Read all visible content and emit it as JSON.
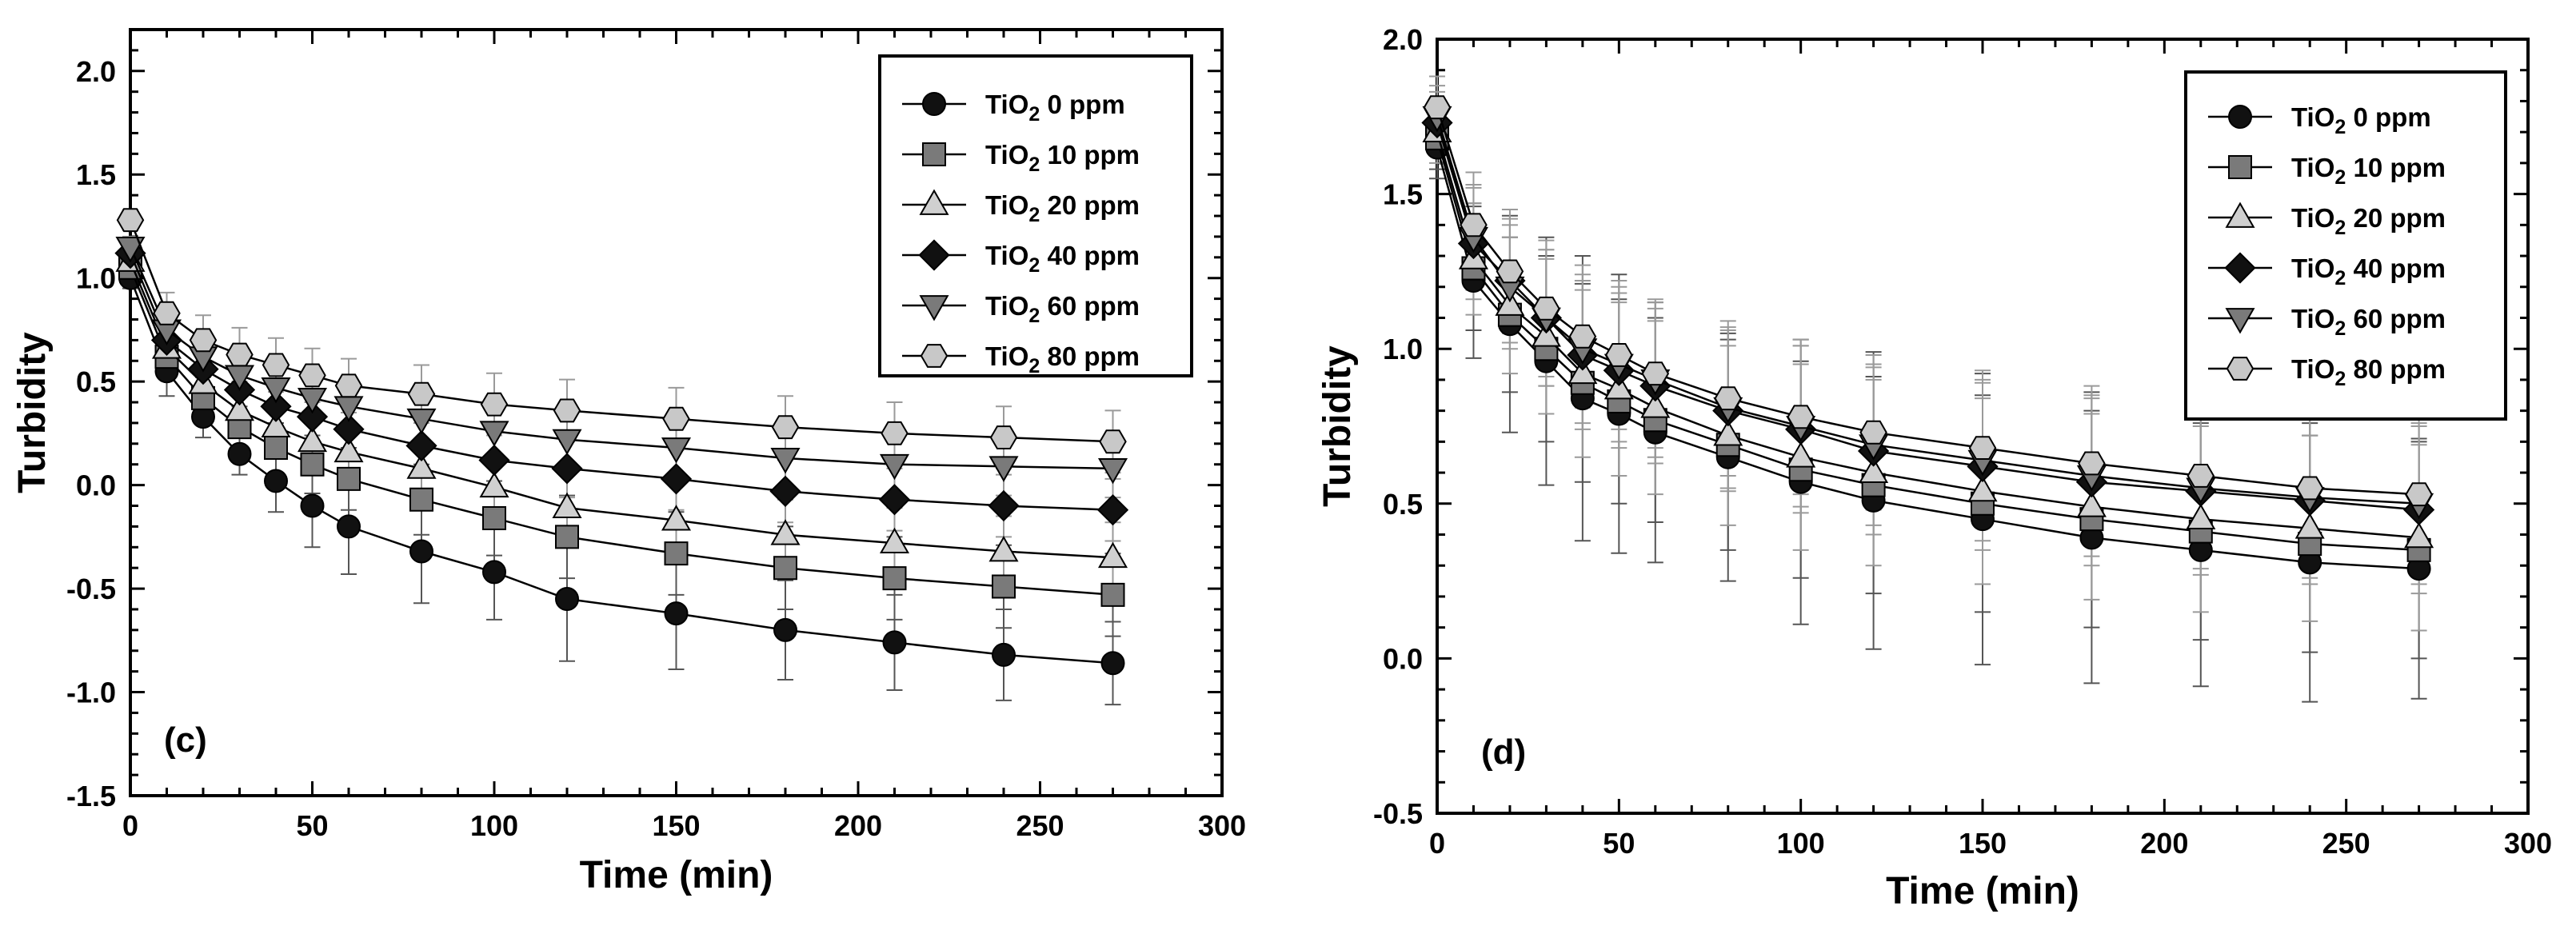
{
  "figure": {
    "styles": [
      {
        "marker": "circle",
        "fill": "#111111"
      },
      {
        "marker": "square",
        "fill": "#7a7a7a"
      },
      {
        "marker": "triangle-up",
        "fill": "#d0d0d0"
      },
      {
        "marker": "diamond",
        "fill": "#111111"
      },
      {
        "marker": "triangle-down",
        "fill": "#7a7a7a"
      },
      {
        "marker": "hexagon",
        "fill": "#c8c8c8"
      }
    ],
    "colors": {
      "line": "#000000",
      "errorbar": "#555555",
      "errorbar_light": "#9a9a9a"
    }
  },
  "chart_data": [
    {
      "type": "line",
      "panel_label": "(c)",
      "title": "",
      "xlabel": "Time (min)",
      "ylabel": "Turbidity",
      "xlim": [
        0,
        300
      ],
      "ylim": [
        -1.5,
        2.2
      ],
      "xticks": [
        0,
        50,
        100,
        150,
        200,
        250,
        300
      ],
      "yticks": [
        -1.5,
        -1.0,
        -0.5,
        0.0,
        0.5,
        1.0,
        1.5,
        2.0
      ],
      "ytick_labels": [
        "-1.5",
        "-1.0",
        "-0.5",
        "0.0",
        "0.5",
        "1.0",
        "1.5",
        "2.0"
      ],
      "grid": false,
      "legend_position": "top-right",
      "x": [
        0,
        10,
        20,
        30,
        40,
        50,
        60,
        80,
        100,
        120,
        150,
        180,
        210,
        240,
        270
      ],
      "series": [
        {
          "name": "TiO2 0 ppm",
          "legend_main": "TiO",
          "legend_sub": "2",
          "legend_rest": " 0 ppm",
          "values": [
            1.0,
            0.55,
            0.33,
            0.15,
            0.02,
            -0.1,
            -0.2,
            -0.32,
            -0.42,
            -0.55,
            -0.62,
            -0.7,
            -0.76,
            -0.82,
            -0.86
          ],
          "errors": [
            0.05,
            0.12,
            0.1,
            0.1,
            0.15,
            0.2,
            0.23,
            0.25,
            0.23,
            0.3,
            0.27,
            0.24,
            0.23,
            0.22,
            0.2
          ]
        },
        {
          "name": "TiO2 10 ppm",
          "legend_main": "TiO",
          "legend_sub": "2",
          "legend_rest": " 10 ppm",
          "values": [
            1.05,
            0.62,
            0.42,
            0.28,
            0.18,
            0.1,
            0.03,
            -0.07,
            -0.16,
            -0.25,
            -0.33,
            -0.4,
            -0.45,
            -0.49,
            -0.53
          ],
          "errors": [
            0.05,
            0.1,
            0.1,
            0.1,
            0.12,
            0.14,
            0.15,
            0.17,
            0.18,
            0.2,
            0.2,
            0.2,
            0.2,
            0.2,
            0.2
          ]
        },
        {
          "name": "TiO2 20 ppm",
          "legend_main": "TiO",
          "legend_sub": "2",
          "legend_rest": " 20 ppm",
          "values": [
            1.08,
            0.66,
            0.49,
            0.36,
            0.28,
            0.21,
            0.16,
            0.08,
            -0.01,
            -0.11,
            -0.17,
            -0.24,
            -0.28,
            -0.32,
            -0.35
          ],
          "errors": [
            0.05,
            0.1,
            0.1,
            0.1,
            0.12,
            0.12,
            0.13,
            0.14,
            0.15,
            0.16,
            0.17,
            0.17,
            0.17,
            0.17,
            0.17
          ]
        },
        {
          "name": "TiO2 40 ppm",
          "legend_main": "TiO",
          "legend_sub": "2",
          "legend_rest": " 40 ppm",
          "values": [
            1.12,
            0.7,
            0.56,
            0.46,
            0.38,
            0.33,
            0.27,
            0.19,
            0.12,
            0.08,
            0.03,
            -0.03,
            -0.07,
            -0.1,
            -0.12
          ],
          "errors": [
            0.05,
            0.1,
            0.1,
            0.1,
            0.11,
            0.12,
            0.12,
            0.13,
            0.14,
            0.14,
            0.15,
            0.15,
            0.15,
            0.15,
            0.15
          ]
        },
        {
          "name": "TiO2 60 ppm",
          "legend_main": "TiO",
          "legend_sub": "2",
          "legend_rest": " 60 ppm",
          "values": [
            1.15,
            0.75,
            0.62,
            0.53,
            0.47,
            0.42,
            0.38,
            0.32,
            0.26,
            0.22,
            0.18,
            0.13,
            0.1,
            0.09,
            0.08
          ],
          "errors": [
            0.05,
            0.1,
            0.1,
            0.1,
            0.1,
            0.11,
            0.11,
            0.12,
            0.13,
            0.13,
            0.13,
            0.14,
            0.14,
            0.14,
            0.14
          ]
        },
        {
          "name": "TiO2 80 ppm",
          "legend_main": "TiO",
          "legend_sub": "2",
          "legend_rest": " 80 ppm",
          "values": [
            1.28,
            0.83,
            0.7,
            0.63,
            0.58,
            0.53,
            0.48,
            0.44,
            0.39,
            0.36,
            0.32,
            0.28,
            0.25,
            0.23,
            0.21
          ],
          "errors": [
            0.05,
            0.1,
            0.12,
            0.13,
            0.13,
            0.13,
            0.13,
            0.14,
            0.15,
            0.15,
            0.15,
            0.15,
            0.15,
            0.15,
            0.15
          ]
        }
      ]
    },
    {
      "type": "line",
      "panel_label": "(d)",
      "title": "",
      "xlabel": "Time (min)",
      "ylabel": "Turbidity",
      "xlim": [
        0,
        300
      ],
      "ylim": [
        -0.5,
        2.0
      ],
      "xticks": [
        0,
        50,
        100,
        150,
        200,
        250,
        300
      ],
      "yticks": [
        -0.5,
        0.0,
        0.5,
        1.0,
        1.5,
        2.0
      ],
      "ytick_labels": [
        "-0.5",
        "0.0",
        "0.5",
        "1.0",
        "1.5",
        "2.0"
      ],
      "grid": false,
      "legend_position": "top-right",
      "x": [
        0,
        10,
        20,
        30,
        40,
        50,
        60,
        80,
        100,
        120,
        150,
        180,
        210,
        240,
        270
      ],
      "series": [
        {
          "name": "TiO2 0 ppm",
          "legend_main": "TiO",
          "legend_sub": "2",
          "legend_rest": " 0 ppm",
          "values": [
            1.65,
            1.22,
            1.08,
            0.96,
            0.84,
            0.79,
            0.73,
            0.65,
            0.57,
            0.51,
            0.45,
            0.39,
            0.35,
            0.31,
            0.29
          ],
          "errors": [
            0.1,
            0.25,
            0.35,
            0.4,
            0.46,
            0.45,
            0.42,
            0.4,
            0.46,
            0.48,
            0.47,
            0.47,
            0.44,
            0.45,
            0.42
          ]
        },
        {
          "name": "TiO2 10 ppm",
          "legend_main": "TiO",
          "legend_sub": "2",
          "legend_rest": " 10 ppm",
          "values": [
            1.68,
            1.26,
            1.11,
            1.0,
            0.89,
            0.83,
            0.77,
            0.69,
            0.61,
            0.56,
            0.5,
            0.45,
            0.41,
            0.37,
            0.35
          ],
          "errors": [
            0.1,
            0.2,
            0.25,
            0.3,
            0.32,
            0.33,
            0.33,
            0.34,
            0.35,
            0.35,
            0.35,
            0.35,
            0.35,
            0.35,
            0.35
          ]
        },
        {
          "name": "TiO2 20 ppm",
          "legend_main": "TiO",
          "legend_sub": "2",
          "legend_rest": " 20 ppm",
          "values": [
            1.7,
            1.29,
            1.14,
            1.04,
            0.92,
            0.87,
            0.81,
            0.72,
            0.65,
            0.6,
            0.54,
            0.49,
            0.45,
            0.42,
            0.39
          ],
          "errors": [
            0.1,
            0.18,
            0.22,
            0.25,
            0.27,
            0.28,
            0.28,
            0.29,
            0.3,
            0.3,
            0.3,
            0.3,
            0.3,
            0.3,
            0.3
          ]
        },
        {
          "name": "TiO2 40 ppm",
          "legend_main": "TiO",
          "legend_sub": "2",
          "legend_rest": " 40 ppm",
          "values": [
            1.73,
            1.34,
            1.22,
            1.1,
            0.98,
            0.93,
            0.88,
            0.8,
            0.74,
            0.67,
            0.62,
            0.57,
            0.54,
            0.51,
            0.48
          ],
          "errors": [
            0.1,
            0.18,
            0.2,
            0.22,
            0.24,
            0.25,
            0.25,
            0.26,
            0.27,
            0.27,
            0.27,
            0.27,
            0.27,
            0.27,
            0.27
          ]
        },
        {
          "name": "TiO2 60 ppm",
          "legend_main": "TiO",
          "legend_sub": "2",
          "legend_rest": " 60 ppm",
          "values": [
            1.75,
            1.36,
            1.2,
            1.1,
            1.0,
            0.95,
            0.9,
            0.81,
            0.75,
            0.69,
            0.64,
            0.59,
            0.55,
            0.52,
            0.5
          ],
          "errors": [
            0.1,
            0.17,
            0.2,
            0.22,
            0.24,
            0.25,
            0.25,
            0.26,
            0.26,
            0.26,
            0.26,
            0.26,
            0.26,
            0.26,
            0.26
          ]
        },
        {
          "name": "TiO2 80 ppm",
          "legend_main": "TiO",
          "legend_sub": "2",
          "legend_rest": " 80 ppm",
          "values": [
            1.78,
            1.4,
            1.25,
            1.13,
            1.04,
            0.98,
            0.92,
            0.84,
            0.78,
            0.73,
            0.68,
            0.63,
            0.59,
            0.55,
            0.53
          ],
          "errors": [
            0.1,
            0.17,
            0.2,
            0.22,
            0.23,
            0.24,
            0.24,
            0.25,
            0.25,
            0.25,
            0.25,
            0.25,
            0.25,
            0.25,
            0.25
          ]
        }
      ]
    }
  ]
}
